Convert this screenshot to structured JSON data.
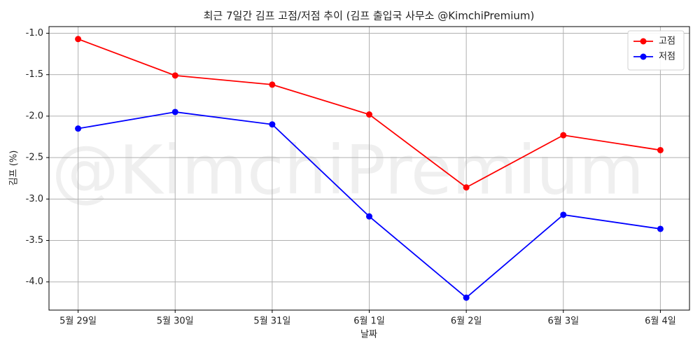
{
  "chart_data": {
    "type": "line",
    "title": "최근 7일간 김프 고점/저점 추이 (김프 출입국 사무소 @KimchiPremium)",
    "watermark": "@KimchiPremium",
    "x_label": "날짜",
    "y_label": "김프 (%)",
    "categories": [
      "5월 29일",
      "5월 30일",
      "5월 31일",
      "6월 1일",
      "6월 2일",
      "6월 3일",
      "6월 4일"
    ],
    "series": [
      {
        "name": "고점",
        "color": "#ff0000",
        "values": [
          -1.07,
          -1.51,
          -1.62,
          -1.98,
          -2.86,
          -2.23,
          -2.41
        ]
      },
      {
        "name": "저점",
        "color": "#0000ff",
        "values": [
          -2.15,
          -1.95,
          -2.1,
          -3.21,
          -4.19,
          -3.19,
          -3.36
        ]
      }
    ],
    "ylim": [
      -4.34,
      -0.92
    ],
    "yticks": [
      {
        "value": -1,
        "label": "-1.0"
      },
      -1.5,
      {
        "value": -2,
        "label": "-2.0"
      },
      -2.5,
      {
        "value": -3,
        "label": "-3.0"
      },
      -3.5,
      {
        "value": -4,
        "label": "-4.0"
      }
    ],
    "grid": true,
    "legend": "upper right"
  }
}
